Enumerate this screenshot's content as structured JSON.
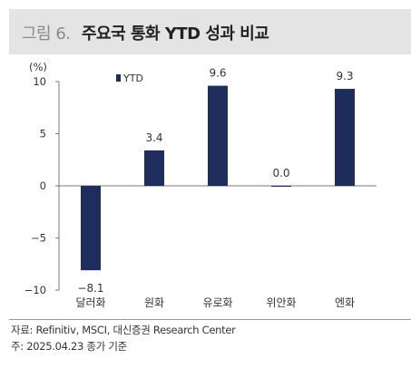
{
  "header": {
    "figure_label": "그림 6.",
    "title": "주요국 통화 YTD 성과 비교"
  },
  "chart_data": {
    "type": "bar",
    "unit_label": "(%)",
    "categories": [
      "달러화",
      "원화",
      "유로화",
      "위안화",
      "엔화"
    ],
    "series": [
      {
        "name": "YTD",
        "values": [
          -8.1,
          3.4,
          9.6,
          0.0,
          9.3
        ],
        "color": "#1f2d5c"
      }
    ],
    "data_labels": [
      "−8.1",
      "3.4",
      "9.6",
      "0.0",
      "9.3"
    ],
    "y_ticks": [
      10,
      5,
      0,
      -5,
      -10
    ],
    "y_tick_labels": [
      "10",
      "5",
      "0",
      "−5",
      "−10"
    ],
    "ylim": [
      -10,
      10
    ],
    "grid": false,
    "legend_position": "top-left"
  },
  "footer": {
    "source": "자료:  Refinitiv, MSCI, 대신증권 Research Center",
    "note": "주: 2025.04.23 종가 기준"
  }
}
